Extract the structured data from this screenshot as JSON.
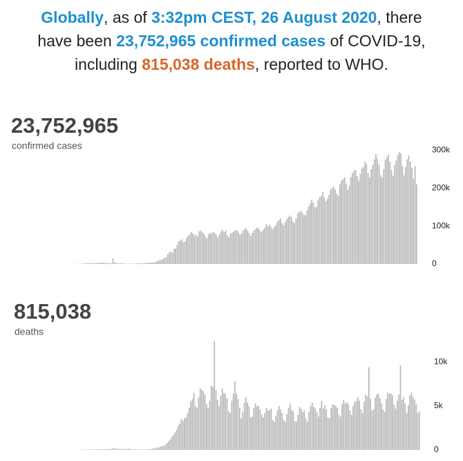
{
  "headline": {
    "parts": [
      "Globally",
      ", as of ",
      "3:32pm CEST, 26 August 2020",
      ", there",
      "have been ",
      "23,752,965 confirmed cases",
      " of COVID-19,",
      "including ",
      "815,038 deaths",
      ", reported to WHO."
    ]
  },
  "chart_data": [
    {
      "type": "bar",
      "title": "23,752,965",
      "subtitle": "confirmed cases",
      "color": "#b3b3b3",
      "ylim": [
        0,
        310000
      ],
      "yticks": [
        0,
        {
          "value": 100000,
          "label": "100k"
        },
        {
          "value": 200000,
          "label": "200k"
        },
        {
          "value": 300000,
          "label": "300k"
        }
      ],
      "values": [
        0,
        0,
        0,
        0,
        0,
        0,
        0,
        0,
        0,
        0,
        0,
        0,
        0,
        0,
        0,
        0,
        0,
        0,
        0,
        300,
        400,
        500,
        700,
        1000,
        1300,
        1700,
        2000,
        1700,
        2100,
        2600,
        2000,
        2100,
        2600,
        2800,
        3200,
        3700,
        3200,
        3400,
        2700,
        2600,
        2100,
        2000,
        1800,
        15100,
        5000,
        2600,
        2100,
        2000,
        1900,
        1700,
        1100,
        600,
        900,
        800,
        600,
        1000,
        900,
        1200,
        1600,
        1700,
        1800,
        2000,
        1900,
        2200,
        2300,
        2700,
        3600,
        3600,
        4100,
        4000,
        4500,
        7000,
        8700,
        10500,
        10800,
        13500,
        16000,
        18000,
        26000,
        30000,
        33000,
        30000,
        40000,
        41000,
        50000,
        60000,
        62000,
        65000,
        58000,
        60000,
        69000,
        74000,
        78000,
        84000,
        81000,
        75000,
        78000,
        72000,
        86000,
        88000,
        85000,
        81000,
        73000,
        68000,
        78000,
        82000,
        80000,
        85000,
        82000,
        76000,
        70000,
        78000,
        86000,
        90000,
        84000,
        88000,
        76000,
        70000,
        80000,
        82000,
        85000,
        88000,
        90000,
        85000,
        78000,
        79000,
        88000,
        92000,
        95000,
        88000,
        82000,
        74000,
        82000,
        88000,
        92000,
        96000,
        94000,
        88000,
        84000,
        90000,
        96000,
        106000,
        100000,
        104000,
        98000,
        92000,
        98000,
        102000,
        112000,
        116000,
        120000,
        108000,
        102000,
        110000,
        118000,
        124000,
        128000,
        124000,
        112000,
        108000,
        120000,
        134000,
        138000,
        140000,
        136000,
        130000,
        128000,
        142000,
        152000,
        160000,
        170000,
        162000,
        150000,
        150000,
        168000,
        176000,
        180000,
        190000,
        176000,
        166000,
        172000,
        182000,
        196000,
        200000,
        204000,
        196000,
        186000,
        180000,
        210000,
        220000,
        224000,
        228000,
        212000,
        196000,
        206000,
        230000,
        240000,
        246000,
        248000,
        232000,
        220000,
        238000,
        252000,
        256000,
        270000,
        264000,
        240000,
        228000,
        250000,
        262000,
        276000,
        290000,
        278000,
        262000,
        234000,
        228000,
        250000,
        276000,
        282000,
        288000,
        270000,
        248000,
        232000,
        262000,
        274000,
        288000,
        296000,
        292000,
        258000,
        234000,
        256000,
        276000,
        286000,
        270000,
        254000,
        226000,
        258000,
        210000
      ]
    },
    {
      "type": "bar",
      "title": "815,038",
      "subtitle": "deaths",
      "color": "#b3b3b3",
      "ylim": [
        0,
        12500
      ],
      "yticks": [
        0,
        {
          "value": 5000,
          "label": "5k"
        },
        {
          "value": 10000,
          "label": "10k"
        }
      ],
      "values": [
        0,
        0,
        0,
        0,
        0,
        0,
        0,
        0,
        0,
        0,
        0,
        0,
        0,
        0,
        0,
        0,
        0,
        0,
        0,
        0,
        10,
        20,
        20,
        30,
        40,
        50,
        40,
        60,
        40,
        50,
        40,
        50,
        60,
        60,
        70,
        70,
        70,
        80,
        80,
        90,
        100,
        110,
        100,
        250,
        140,
        140,
        130,
        110,
        100,
        120,
        120,
        110,
        100,
        150,
        70,
        60,
        60,
        50,
        40,
        60,
        50,
        40,
        50,
        40,
        60,
        50,
        100,
        100,
        200,
        150,
        200,
        300,
        300,
        400,
        400,
        500,
        600,
        800,
        1000,
        1200,
        1500,
        1700,
        2000,
        2300,
        2700,
        3000,
        3500,
        3300,
        3600,
        3700,
        4200,
        4800,
        5500,
        5800,
        6500,
        5000,
        4800,
        6000,
        7000,
        6800,
        6700,
        6300,
        5200,
        4800,
        5600,
        7300,
        7200,
        12400,
        6800,
        5700,
        5000,
        6200,
        7000,
        6500,
        6400,
        5900,
        4400,
        4200,
        5600,
        6400,
        7800,
        6400,
        5800,
        4800,
        3600,
        4300,
        5400,
        6000,
        5400,
        5000,
        3700,
        3800,
        4800,
        5300,
        5000,
        5000,
        4600,
        4000,
        3700,
        4200,
        4800,
        4500,
        4500,
        4700,
        3400,
        3200,
        3900,
        4500,
        5000,
        4600,
        4200,
        3400,
        3200,
        4100,
        4800,
        5300,
        4600,
        4400,
        3300,
        3200,
        4000,
        4900,
        4700,
        4300,
        4500,
        3600,
        3200,
        4300,
        5000,
        5400,
        4900,
        4700,
        4300,
        3800,
        4800,
        5600,
        4700,
        5100,
        4600,
        3700,
        3600,
        4800,
        5200,
        5100,
        5000,
        4800,
        4000,
        3800,
        5200,
        5700,
        5300,
        5400,
        5200,
        4500,
        4000,
        5000,
        5500,
        5600,
        6000,
        5600,
        4600,
        4200,
        5500,
        6300,
        6100,
        9400,
        5800,
        4500,
        4600,
        5900,
        6300,
        6400,
        5900,
        5300,
        4600,
        4300,
        5800,
        6500,
        6400,
        6400,
        6200,
        5100,
        4700,
        5600,
        6300,
        9600,
        5700,
        6000,
        5300,
        4200,
        5100,
        6200,
        6500,
        6000,
        5700,
        5200,
        4200,
        4400
      ]
    }
  ]
}
